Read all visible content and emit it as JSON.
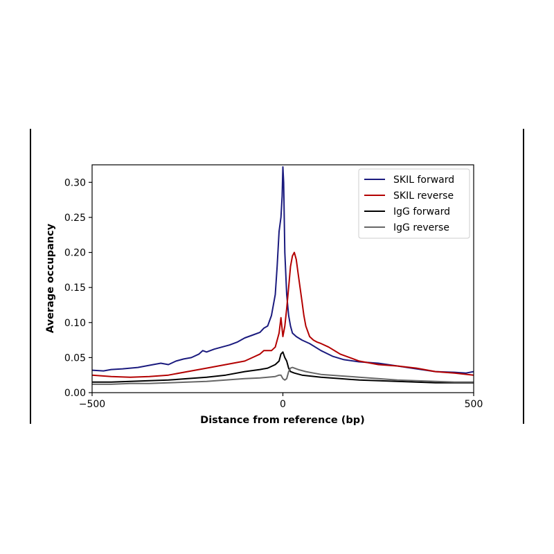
{
  "chart_data": {
    "type": "line",
    "title": "",
    "xlabel": "Distance from reference (bp)",
    "ylabel": "Average occupancy",
    "xlim": [
      -500,
      500
    ],
    "ylim": [
      0.0,
      0.325
    ],
    "xticks": [
      -500,
      0,
      500
    ],
    "xtick_labels": [
      "−500",
      "0",
      "500"
    ],
    "yticks": [
      0.0,
      0.05,
      0.1,
      0.15,
      0.2,
      0.25,
      0.3
    ],
    "ytick_labels": [
      "0.00",
      "0.05",
      "0.10",
      "0.15",
      "0.20",
      "0.25",
      "0.30"
    ],
    "grid": false,
    "legend_position": "top-right",
    "series": [
      {
        "name": "SKIL forward",
        "color": "#1a1a7e",
        "points": [
          [
            -500,
            0.032
          ],
          [
            -470,
            0.031
          ],
          [
            -450,
            0.033
          ],
          [
            -420,
            0.034
          ],
          [
            -400,
            0.035
          ],
          [
            -380,
            0.036
          ],
          [
            -340,
            0.04
          ],
          [
            -320,
            0.042
          ],
          [
            -300,
            0.04
          ],
          [
            -280,
            0.045
          ],
          [
            -260,
            0.048
          ],
          [
            -240,
            0.05
          ],
          [
            -220,
            0.055
          ],
          [
            -210,
            0.06
          ],
          [
            -200,
            0.058
          ],
          [
            -180,
            0.062
          ],
          [
            -160,
            0.065
          ],
          [
            -140,
            0.068
          ],
          [
            -120,
            0.072
          ],
          [
            -100,
            0.078
          ],
          [
            -80,
            0.082
          ],
          [
            -60,
            0.086
          ],
          [
            -50,
            0.092
          ],
          [
            -40,
            0.095
          ],
          [
            -30,
            0.11
          ],
          [
            -20,
            0.14
          ],
          [
            -15,
            0.18
          ],
          [
            -10,
            0.23
          ],
          [
            -5,
            0.25
          ],
          [
            -2,
            0.28
          ],
          [
            0,
            0.322
          ],
          [
            2,
            0.3
          ],
          [
            5,
            0.2
          ],
          [
            10,
            0.14
          ],
          [
            15,
            0.11
          ],
          [
            20,
            0.095
          ],
          [
            25,
            0.085
          ],
          [
            35,
            0.08
          ],
          [
            50,
            0.075
          ],
          [
            70,
            0.07
          ],
          [
            100,
            0.06
          ],
          [
            130,
            0.052
          ],
          [
            160,
            0.047
          ],
          [
            200,
            0.044
          ],
          [
            250,
            0.042
          ],
          [
            300,
            0.038
          ],
          [
            350,
            0.034
          ],
          [
            400,
            0.03
          ],
          [
            450,
            0.029
          ],
          [
            480,
            0.028
          ],
          [
            500,
            0.03
          ]
        ]
      },
      {
        "name": "SKIL reverse",
        "color": "#b30000",
        "points": [
          [
            -500,
            0.025
          ],
          [
            -450,
            0.023
          ],
          [
            -400,
            0.022
          ],
          [
            -350,
            0.023
          ],
          [
            -300,
            0.025
          ],
          [
            -250,
            0.03
          ],
          [
            -200,
            0.035
          ],
          [
            -150,
            0.04
          ],
          [
            -100,
            0.045
          ],
          [
            -80,
            0.05
          ],
          [
            -60,
            0.055
          ],
          [
            -50,
            0.06
          ],
          [
            -30,
            0.06
          ],
          [
            -20,
            0.065
          ],
          [
            -10,
            0.085
          ],
          [
            -5,
            0.107
          ],
          [
            0,
            0.08
          ],
          [
            5,
            0.095
          ],
          [
            10,
            0.12
          ],
          [
            15,
            0.15
          ],
          [
            20,
            0.18
          ],
          [
            25,
            0.195
          ],
          [
            30,
            0.2
          ],
          [
            35,
            0.19
          ],
          [
            40,
            0.17
          ],
          [
            45,
            0.15
          ],
          [
            50,
            0.13
          ],
          [
            55,
            0.11
          ],
          [
            60,
            0.095
          ],
          [
            70,
            0.08
          ],
          [
            80,
            0.075
          ],
          [
            90,
            0.072
          ],
          [
            100,
            0.07
          ],
          [
            120,
            0.065
          ],
          [
            150,
            0.055
          ],
          [
            200,
            0.045
          ],
          [
            250,
            0.04
          ],
          [
            300,
            0.038
          ],
          [
            350,
            0.035
          ],
          [
            400,
            0.03
          ],
          [
            450,
            0.028
          ],
          [
            500,
            0.025
          ]
        ]
      },
      {
        "name": "IgG forward",
        "color": "#000000",
        "points": [
          [
            -500,
            0.015
          ],
          [
            -450,
            0.015
          ],
          [
            -400,
            0.016
          ],
          [
            -350,
            0.017
          ],
          [
            -300,
            0.018
          ],
          [
            -250,
            0.02
          ],
          [
            -200,
            0.022
          ],
          [
            -150,
            0.025
          ],
          [
            -100,
            0.03
          ],
          [
            -60,
            0.033
          ],
          [
            -40,
            0.035
          ],
          [
            -20,
            0.04
          ],
          [
            -10,
            0.045
          ],
          [
            -5,
            0.055
          ],
          [
            0,
            0.058
          ],
          [
            5,
            0.05
          ],
          [
            10,
            0.045
          ],
          [
            15,
            0.035
          ],
          [
            20,
            0.03
          ],
          [
            30,
            0.028
          ],
          [
            50,
            0.025
          ],
          [
            100,
            0.022
          ],
          [
            150,
            0.02
          ],
          [
            200,
            0.018
          ],
          [
            250,
            0.017
          ],
          [
            300,
            0.016
          ],
          [
            350,
            0.015
          ],
          [
            400,
            0.014
          ],
          [
            450,
            0.014
          ],
          [
            500,
            0.014
          ]
        ]
      },
      {
        "name": "IgG reverse",
        "color": "#666666",
        "points": [
          [
            -500,
            0.012
          ],
          [
            -450,
            0.012
          ],
          [
            -400,
            0.013
          ],
          [
            -350,
            0.013
          ],
          [
            -300,
            0.014
          ],
          [
            -250,
            0.015
          ],
          [
            -200,
            0.016
          ],
          [
            -150,
            0.018
          ],
          [
            -100,
            0.02
          ],
          [
            -60,
            0.021
          ],
          [
            -40,
            0.022
          ],
          [
            -20,
            0.023
          ],
          [
            -10,
            0.025
          ],
          [
            -5,
            0.025
          ],
          [
            0,
            0.02
          ],
          [
            5,
            0.018
          ],
          [
            10,
            0.02
          ],
          [
            15,
            0.03
          ],
          [
            20,
            0.035
          ],
          [
            25,
            0.036
          ],
          [
            30,
            0.035
          ],
          [
            40,
            0.033
          ],
          [
            60,
            0.03
          ],
          [
            80,
            0.028
          ],
          [
            100,
            0.026
          ],
          [
            150,
            0.024
          ],
          [
            200,
            0.022
          ],
          [
            250,
            0.02
          ],
          [
            300,
            0.018
          ],
          [
            350,
            0.017
          ],
          [
            400,
            0.016
          ],
          [
            450,
            0.015
          ],
          [
            500,
            0.015
          ]
        ]
      }
    ]
  }
}
